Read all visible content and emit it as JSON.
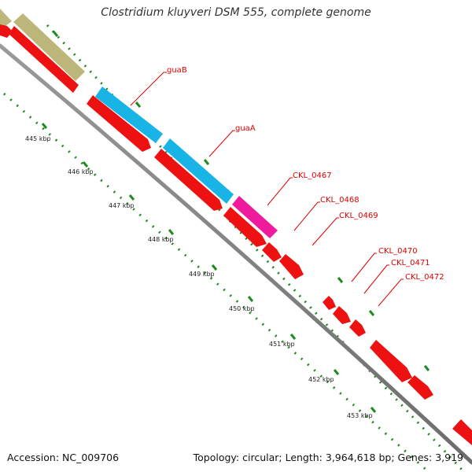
{
  "header": {
    "title": "Clostridium kluyveri DSM 555, complete genome"
  },
  "footer": {
    "accession": "Accession: NC_009706",
    "summary": "Topology: circular; Length: 3,964,618 bp; Genes: 3,919"
  },
  "scale_labels": [
    "445 kbp",
    "446 kbp",
    "447 kbp",
    "448 kbp",
    "449 kbp",
    "450 kbp",
    "451 kbp",
    "452 kbp",
    "453 kbp"
  ],
  "gene_labels": [
    "guaB",
    "guaA",
    "CKL_0467",
    "CKL_0468",
    "CKL_0469",
    "CKL_0470",
    "CKL_0471",
    "CKL_0472"
  ],
  "colors": {
    "cds": "#ee1111",
    "guaB_guaA_feature": "#18b4e6",
    "CKL_0467_feature": "#ee1c9c",
    "upstream_feature": "#bdb67b",
    "tick": "#1f8a1f",
    "backbone": "#8c8c8c",
    "label": "#e00000"
  }
}
